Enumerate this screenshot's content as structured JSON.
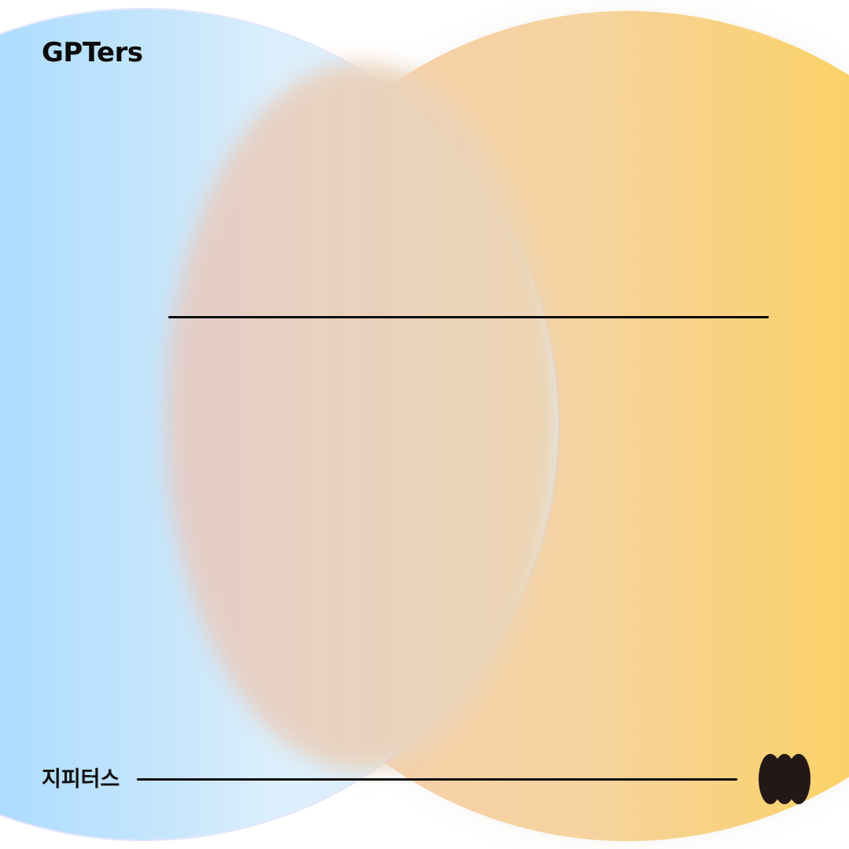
{
  "brand": {
    "wordmark": "GPTers",
    "korean_name": "지피터스"
  },
  "icons": {
    "logo": "three-ovals-logo-icon"
  },
  "colors": {
    "blue_circle": "#aedcff",
    "orange_circle": "#fcd055",
    "overlap": "#e9d2bf",
    "lines": "#0d0d0d",
    "logo": "#231816"
  }
}
